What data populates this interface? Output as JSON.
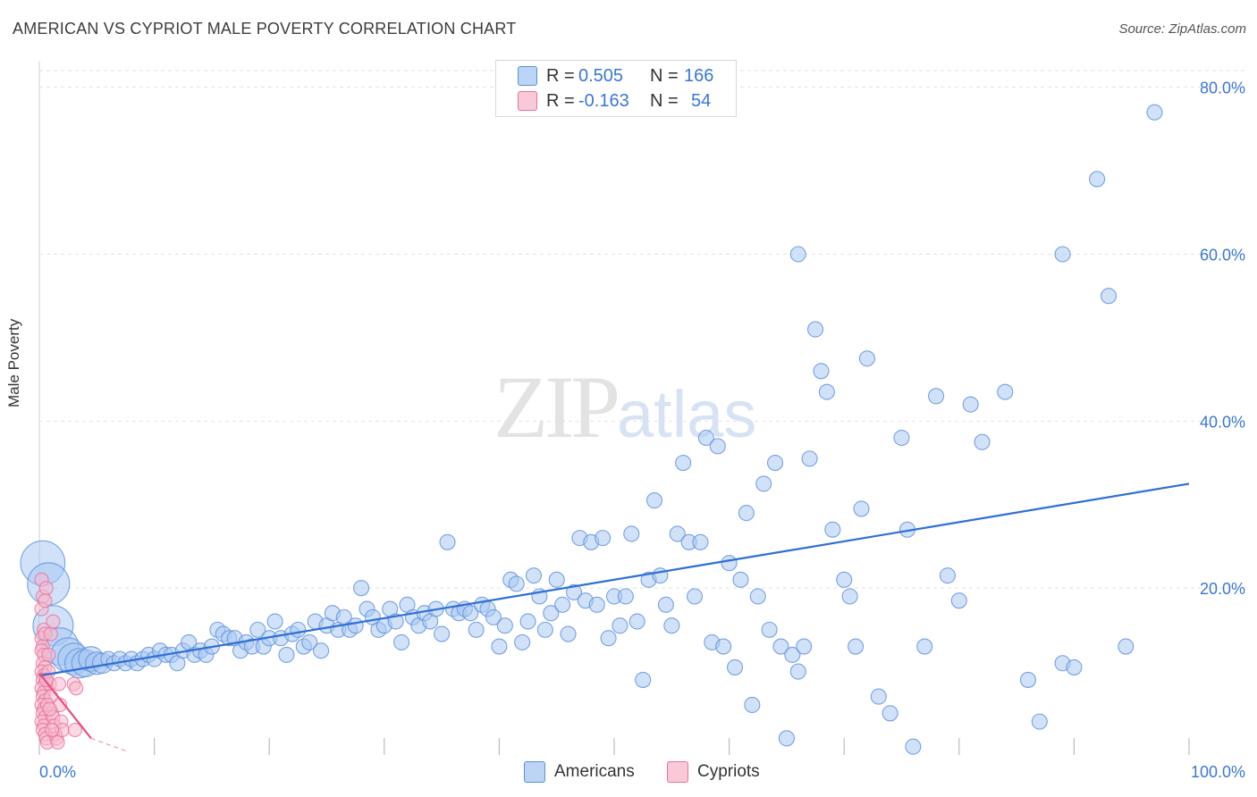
{
  "header": {
    "title": "AMERICAN VS CYPRIOT MALE POVERTY CORRELATION CHART",
    "source": "Source: ZipAtlas.com"
  },
  "watermark": {
    "zip": "ZIP",
    "atlas": "atlas"
  },
  "legend": {
    "americans": {
      "r_label": "R =",
      "r_value": "0.505",
      "n_label": "N =",
      "n_value": "166"
    },
    "cypriots": {
      "r_label": "R =",
      "r_value": "-0.163",
      "n_label": "N =",
      "n_value": "54"
    }
  },
  "bottom_legend": {
    "americans": "Americans",
    "cypriots": "Cypriots"
  },
  "colors": {
    "americans_fill": "#a9c8f3",
    "americans_stroke": "#5a8fdc",
    "americans_line": "#2f6fd4",
    "cypriots_fill": "#f6b9cd",
    "cypriots_stroke": "#e8709a",
    "cypriots_line": "#e5507f",
    "tick_label": "#3a76d6",
    "grid": "#e2e2e2"
  },
  "chart_data": {
    "type": "scatter",
    "title": "AMERICAN VS CYPRIOT MALE POVERTY CORRELATION CHART",
    "xlabel": "",
    "ylabel": "Male Poverty",
    "xlim": [
      0,
      100
    ],
    "ylim": [
      0,
      82
    ],
    "x_tick_labels": [
      "0.0%",
      "100.0%"
    ],
    "y_ticks": [
      20,
      40,
      60,
      80
    ],
    "y_tick_labels": [
      "20.0%",
      "40.0%",
      "60.0%",
      "80.0%"
    ],
    "grid": "horizontal dashed",
    "legend_position": "top-center",
    "series": [
      {
        "name": "Americans",
        "trend": {
          "x": [
            0,
            100
          ],
          "y": [
            9.5,
            32.5
          ]
        },
        "points": [
          [
            0.3,
            23.0
          ],
          [
            0.8,
            20.5
          ],
          [
            1.2,
            15.5
          ],
          [
            1.8,
            13.0
          ],
          [
            2.5,
            12.0
          ],
          [
            3.0,
            11.5
          ],
          [
            3.5,
            11.0
          ],
          [
            4.0,
            11.0
          ],
          [
            4.5,
            11.5
          ],
          [
            5.0,
            11.0
          ],
          [
            5.5,
            11.0
          ],
          [
            6.0,
            11.5
          ],
          [
            6.5,
            11.0
          ],
          [
            7.0,
            11.5
          ],
          [
            7.5,
            11.0
          ],
          [
            8.0,
            11.5
          ],
          [
            8.5,
            11.0
          ],
          [
            9.0,
            11.5
          ],
          [
            9.5,
            12.0
          ],
          [
            10.0,
            11.5
          ],
          [
            10.5,
            12.5
          ],
          [
            11.0,
            12.0
          ],
          [
            11.5,
            12.0
          ],
          [
            12.0,
            11.0
          ],
          [
            12.5,
            12.5
          ],
          [
            13.0,
            13.5
          ],
          [
            13.5,
            12.0
          ],
          [
            14.0,
            12.5
          ],
          [
            14.5,
            12.0
          ],
          [
            15.0,
            13.0
          ],
          [
            15.5,
            15.0
          ],
          [
            16.0,
            14.5
          ],
          [
            16.5,
            14.0
          ],
          [
            17.0,
            14.0
          ],
          [
            17.5,
            12.5
          ],
          [
            18.0,
            13.5
          ],
          [
            18.5,
            13.0
          ],
          [
            19.0,
            15.0
          ],
          [
            19.5,
            13.0
          ],
          [
            20.0,
            14.0
          ],
          [
            20.5,
            16.0
          ],
          [
            21.0,
            14.0
          ],
          [
            21.5,
            12.0
          ],
          [
            22.0,
            14.5
          ],
          [
            22.5,
            15.0
          ],
          [
            23.0,
            13.0
          ],
          [
            23.5,
            13.5
          ],
          [
            24.0,
            16.0
          ],
          [
            24.5,
            12.5
          ],
          [
            25.0,
            15.5
          ],
          [
            25.5,
            17.0
          ],
          [
            26.0,
            15.0
          ],
          [
            26.5,
            16.5
          ],
          [
            27.0,
            15.0
          ],
          [
            27.5,
            15.5
          ],
          [
            28.0,
            20.0
          ],
          [
            28.5,
            17.5
          ],
          [
            29.0,
            16.5
          ],
          [
            29.5,
            15.0
          ],
          [
            30.0,
            15.5
          ],
          [
            30.5,
            17.5
          ],
          [
            31.0,
            16.0
          ],
          [
            31.5,
            13.5
          ],
          [
            32.0,
            18.0
          ],
          [
            32.5,
            16.5
          ],
          [
            33.0,
            15.5
          ],
          [
            33.5,
            17.0
          ],
          [
            34.0,
            16.0
          ],
          [
            34.5,
            17.5
          ],
          [
            35.0,
            14.5
          ],
          [
            35.5,
            25.5
          ],
          [
            36.0,
            17.5
          ],
          [
            36.5,
            17.0
          ],
          [
            37.0,
            17.5
          ],
          [
            37.5,
            17.0
          ],
          [
            38.0,
            15.0
          ],
          [
            38.5,
            18.0
          ],
          [
            39.0,
            17.5
          ],
          [
            39.5,
            16.5
          ],
          [
            40.0,
            13.0
          ],
          [
            40.5,
            15.5
          ],
          [
            41.0,
            21.0
          ],
          [
            41.5,
            20.5
          ],
          [
            42.0,
            13.5
          ],
          [
            42.5,
            16.0
          ],
          [
            43.0,
            21.5
          ],
          [
            43.5,
            19.0
          ],
          [
            44.0,
            15.0
          ],
          [
            44.5,
            17.0
          ],
          [
            45.0,
            21.0
          ],
          [
            45.5,
            18.0
          ],
          [
            46.0,
            14.5
          ],
          [
            46.5,
            19.5
          ],
          [
            47.0,
            26.0
          ],
          [
            47.5,
            18.5
          ],
          [
            48.0,
            25.5
          ],
          [
            48.5,
            18.0
          ],
          [
            49.0,
            26.0
          ],
          [
            49.5,
            14.0
          ],
          [
            50.0,
            19.0
          ],
          [
            50.5,
            15.5
          ],
          [
            51.0,
            19.0
          ],
          [
            51.5,
            26.5
          ],
          [
            52.0,
            16.0
          ],
          [
            52.5,
            9.0
          ],
          [
            53.0,
            21.0
          ],
          [
            53.5,
            30.5
          ],
          [
            54.0,
            21.5
          ],
          [
            54.5,
            18.0
          ],
          [
            55.0,
            15.5
          ],
          [
            55.5,
            26.5
          ],
          [
            56.0,
            35.0
          ],
          [
            56.5,
            25.5
          ],
          [
            57.0,
            19.0
          ],
          [
            57.5,
            25.5
          ],
          [
            58.0,
            38.0
          ],
          [
            58.5,
            13.5
          ],
          [
            59.0,
            37.0
          ],
          [
            59.5,
            13.0
          ],
          [
            60.0,
            23.0
          ],
          [
            60.5,
            10.5
          ],
          [
            61.0,
            21.0
          ],
          [
            61.5,
            29.0
          ],
          [
            62.0,
            6.0
          ],
          [
            62.5,
            19.0
          ],
          [
            63.0,
            32.5
          ],
          [
            63.5,
            15.0
          ],
          [
            64.0,
            35.0
          ],
          [
            64.5,
            13.0
          ],
          [
            65.0,
            2.0
          ],
          [
            65.5,
            12.0
          ],
          [
            66.0,
            10.0
          ],
          [
            66.5,
            13.0
          ],
          [
            67.0,
            35.5
          ],
          [
            67.5,
            51.0
          ],
          [
            68.0,
            46.0
          ],
          [
            68.5,
            43.5
          ],
          [
            69.0,
            27.0
          ],
          [
            70.0,
            21.0
          ],
          [
            70.5,
            19.0
          ],
          [
            71.0,
            13.0
          ],
          [
            71.5,
            29.5
          ],
          [
            72.0,
            47.5
          ],
          [
            73.0,
            7.0
          ],
          [
            74.0,
            5.0
          ],
          [
            75.0,
            38.0
          ],
          [
            75.5,
            27.0
          ],
          [
            76.0,
            1.0
          ],
          [
            77.0,
            13.0
          ],
          [
            78.0,
            43.0
          ],
          [
            79.0,
            21.5
          ],
          [
            80.0,
            18.5
          ],
          [
            81.0,
            42.0
          ],
          [
            82.0,
            37.5
          ],
          [
            84.0,
            43.5
          ],
          [
            86.0,
            9.0
          ],
          [
            87.0,
            4.0
          ],
          [
            89.0,
            11.0
          ],
          [
            90.0,
            10.5
          ],
          [
            92.0,
            69.0
          ],
          [
            93.0,
            55.0
          ],
          [
            94.5,
            13.0
          ],
          [
            97.0,
            77.0
          ],
          [
            66.0,
            60.0
          ],
          [
            89.0,
            60.0
          ]
        ]
      },
      {
        "name": "Cypriots",
        "trend": {
          "x": [
            0,
            4.5
          ],
          "y": [
            9.8,
            2.0
          ]
        },
        "points": [
          [
            0.2,
            21.0
          ],
          [
            0.3,
            19.0
          ],
          [
            0.2,
            17.5
          ],
          [
            0.4,
            15.0
          ],
          [
            0.2,
            14.0
          ],
          [
            0.5,
            14.5
          ],
          [
            0.3,
            13.0
          ],
          [
            0.2,
            12.5
          ],
          [
            0.4,
            12.0
          ],
          [
            0.3,
            11.0
          ],
          [
            0.5,
            10.5
          ],
          [
            0.2,
            10.0
          ],
          [
            0.4,
            9.5
          ],
          [
            0.3,
            9.0
          ],
          [
            0.5,
            8.5
          ],
          [
            0.2,
            8.0
          ],
          [
            0.4,
            7.5
          ],
          [
            0.3,
            7.0
          ],
          [
            0.5,
            6.5
          ],
          [
            0.2,
            6.0
          ],
          [
            0.4,
            5.5
          ],
          [
            0.3,
            5.0
          ],
          [
            0.5,
            4.5
          ],
          [
            0.2,
            4.0
          ],
          [
            0.4,
            3.5
          ],
          [
            0.3,
            3.0
          ],
          [
            0.5,
            2.5
          ],
          [
            0.6,
            2.0
          ],
          [
            0.7,
            1.5
          ],
          [
            0.8,
            12.0
          ],
          [
            0.9,
            8.5
          ],
          [
            1.0,
            7.0
          ],
          [
            1.1,
            5.0
          ],
          [
            1.2,
            4.5
          ],
          [
            1.3,
            3.5
          ],
          [
            1.4,
            2.5
          ],
          [
            1.5,
            2.0
          ],
          [
            1.6,
            1.5
          ],
          [
            1.7,
            8.5
          ],
          [
            1.8,
            6.0
          ],
          [
            1.9,
            4.0
          ],
          [
            2.0,
            3.0
          ],
          [
            1.0,
            14.5
          ],
          [
            0.8,
            10.0
          ],
          [
            0.6,
            9.0
          ],
          [
            0.7,
            6.0
          ],
          [
            0.9,
            5.5
          ],
          [
            1.1,
            3.0
          ],
          [
            3.0,
            8.5
          ],
          [
            3.2,
            8.0
          ],
          [
            3.1,
            3.0
          ],
          [
            0.6,
            20.0
          ],
          [
            0.5,
            18.5
          ],
          [
            1.2,
            16.0
          ]
        ]
      }
    ]
  }
}
